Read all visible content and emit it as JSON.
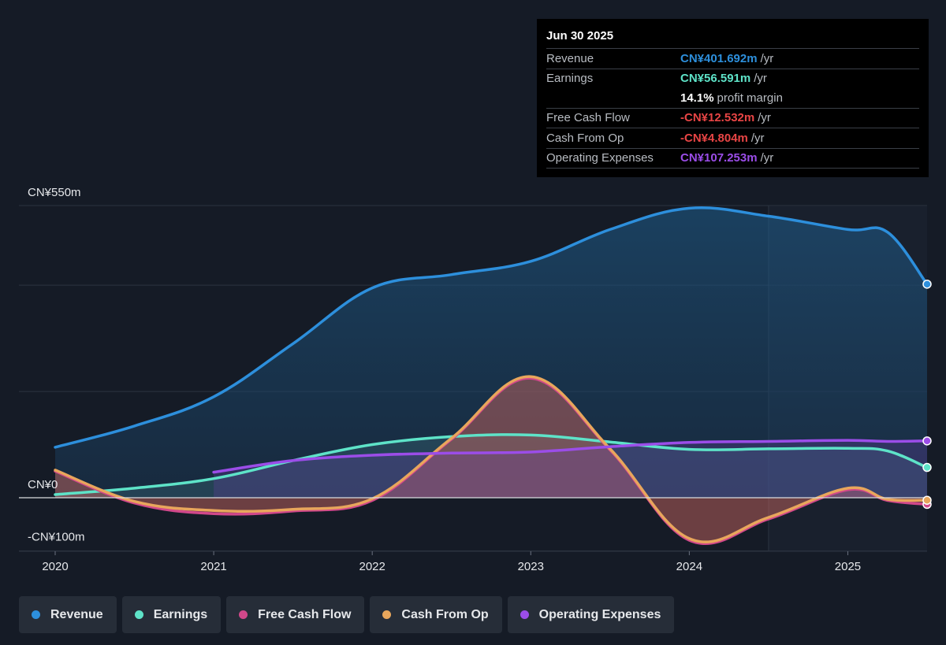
{
  "chart_data": {
    "type": "area",
    "ylim": [
      -100,
      550
    ],
    "y_tick_labels": [
      {
        "value": 550,
        "label": "CN¥550m"
      },
      {
        "value": 0,
        "label": "CN¥0"
      },
      {
        "value": -100,
        "label": "-CN¥100m"
      }
    ],
    "x_ticks": [
      2020,
      2021,
      2022,
      2023,
      2024,
      2025
    ],
    "xlim": [
      2020,
      2025.5
    ],
    "forecast_start": 2024.5,
    "series": [
      {
        "name": "Revenue",
        "color": "#2d8fdc",
        "x": [
          2020,
          2020.5,
          2021,
          2021.5,
          2022,
          2022.5,
          2023,
          2023.5,
          2024,
          2024.5,
          2025,
          2025.25,
          2025.5
        ],
        "values": [
          95,
          135,
          190,
          290,
          395,
          420,
          445,
          505,
          545,
          530,
          505,
          500,
          402
        ]
      },
      {
        "name": "Earnings",
        "color": "#5ee3c8",
        "x": [
          2020,
          2020.5,
          2021,
          2021.5,
          2022,
          2022.5,
          2023,
          2023.5,
          2024,
          2024.5,
          2025,
          2025.25,
          2025.5
        ],
        "values": [
          6,
          18,
          36,
          70,
          100,
          115,
          118,
          105,
          91,
          92,
          93,
          88,
          57
        ]
      },
      {
        "name": "Free Cash Flow",
        "color": "#d1488a",
        "x": [
          2020,
          2020.5,
          2021,
          2021.5,
          2022,
          2022.5,
          2023,
          2023.5,
          2024,
          2024.5,
          2025,
          2025.25,
          2025.5
        ],
        "values": [
          50,
          -10,
          -30,
          -25,
          -5,
          110,
          225,
          90,
          -80,
          -40,
          15,
          -5,
          -12.5
        ]
      },
      {
        "name": "Cash From Op",
        "color": "#e8a65c",
        "x": [
          2020,
          2020.5,
          2021,
          2021.5,
          2022,
          2022.5,
          2023,
          2023.5,
          2024,
          2024.5,
          2025,
          2025.25,
          2025.5
        ],
        "values": [
          52,
          -7,
          -24,
          -22,
          -2,
          112,
          228,
          92,
          -77,
          -37,
          18,
          -3,
          -4.8
        ]
      },
      {
        "name": "Operating Expenses",
        "color": "#9b4de8",
        "x": [
          2021,
          2021.5,
          2022,
          2022.5,
          2023,
          2023.5,
          2024,
          2024.5,
          2025,
          2025.25,
          2025.5
        ],
        "values": [
          48,
          70,
          80,
          84,
          86,
          96,
          104,
          106,
          108,
          106,
          107
        ]
      }
    ]
  },
  "tooltip": {
    "date": "Jun 30 2025",
    "rows": [
      {
        "label": "Revenue",
        "value": "CN¥401.692m",
        "unit": "/yr",
        "color": "#2d8fdc"
      },
      {
        "label": "Earnings",
        "value": "CN¥56.591m",
        "unit": "/yr",
        "color": "#5ee3c8"
      },
      {
        "label": "",
        "value": "14.1%",
        "unit": "profit margin",
        "color": "#ffffff"
      },
      {
        "label": "Free Cash Flow",
        "value": "-CN¥12.532m",
        "unit": "/yr",
        "color": "#e84545"
      },
      {
        "label": "Cash From Op",
        "value": "-CN¥4.804m",
        "unit": "/yr",
        "color": "#e84545"
      },
      {
        "label": "Operating Expenses",
        "value": "CN¥107.253m",
        "unit": "/yr",
        "color": "#9b4de8"
      }
    ]
  },
  "legend": [
    {
      "label": "Revenue",
      "color": "#2d8fdc"
    },
    {
      "label": "Earnings",
      "color": "#5ee3c8"
    },
    {
      "label": "Free Cash Flow",
      "color": "#d1488a"
    },
    {
      "label": "Cash From Op",
      "color": "#e8a65c"
    },
    {
      "label": "Operating Expenses",
      "color": "#9b4de8"
    }
  ]
}
